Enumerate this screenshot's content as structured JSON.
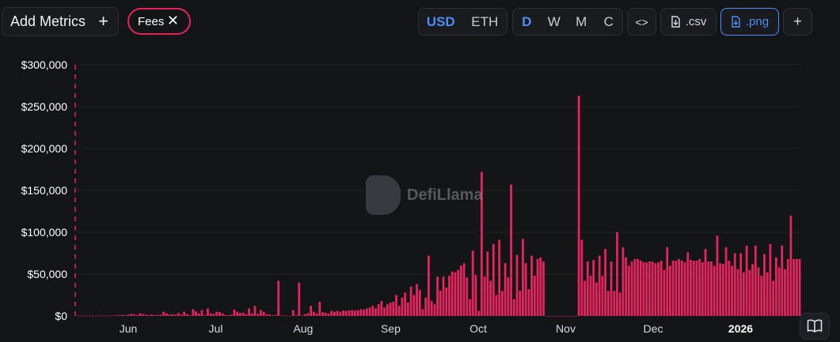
{
  "toolbar": {
    "add_metrics_label": "Add Metrics",
    "fees_chip_label": "Fees",
    "currency_options": [
      "USD",
      "ETH"
    ],
    "currency_selected": "USD",
    "period_options": [
      "D",
      "W",
      "M",
      "C"
    ],
    "period_selected": "D",
    "embed_label": "<>",
    "csv_label": ".csv",
    "png_label": ".png",
    "more_label": "+"
  },
  "watermark": "DefiLlama",
  "colors": {
    "bar": "#e4245f",
    "accent": "#4c8ef5",
    "background": "#141517"
  },
  "chart_data": {
    "type": "bar",
    "series": [
      {
        "name": "Fees"
      }
    ],
    "y_ticks": [
      "$0",
      "$50,000",
      "$100,000",
      "$150,000",
      "$200,000",
      "$250,000",
      "$300,000"
    ],
    "ylim": [
      0,
      300000
    ],
    "x_ticks": [
      "Jun",
      "Jul",
      "Aug",
      "Sep",
      "Oct",
      "Nov",
      "Dec",
      "2026"
    ],
    "values": [
      300,
      200,
      400,
      300,
      350,
      250,
      300,
      400,
      200,
      350,
      300,
      500,
      600,
      400,
      900,
      1200,
      800,
      1500,
      2500,
      1800,
      1200,
      3000,
      2200,
      1500,
      1000,
      1800,
      900,
      1200,
      1500,
      5000,
      3000,
      1800,
      2000,
      1500,
      3500,
      1600,
      5000,
      2200,
      900,
      8000,
      5500,
      2800,
      7000,
      800,
      9000,
      3200,
      2600,
      5000,
      4500,
      3200,
      1200,
      900,
      1500,
      7500,
      5000,
      3500,
      3800,
      2200,
      9000,
      3000,
      12000,
      2500,
      7000,
      5000,
      2000,
      1800,
      800,
      1200,
      42000,
      500,
      300,
      400,
      200,
      7000,
      800,
      40000,
      500,
      2000,
      3200,
      12000,
      5000,
      3000,
      17000,
      4500,
      3800,
      2800,
      6000,
      5000,
      6000,
      5000,
      6500,
      6000,
      6500,
      7000,
      6500,
      7000,
      8000,
      7500,
      9000,
      10000,
      12000,
      9000,
      14000,
      18000,
      10000,
      14000,
      16000,
      17000,
      25000,
      12000,
      22000,
      28000,
      16000,
      35000,
      25000,
      38000,
      31000,
      8000,
      22000,
      72000,
      18000,
      14000,
      47000,
      30000,
      47000,
      34000,
      48000,
      53000,
      52000,
      55000,
      60000,
      63000,
      46000,
      20000,
      78000,
      49000,
      6000,
      172000,
      47000,
      77000,
      42000,
      86000,
      25000,
      91000,
      30000,
      63000,
      46000,
      157000,
      20000,
      73000,
      30000,
      92000,
      63000,
      32000,
      72000,
      48000,
      68000,
      70000,
      65000,
      0,
      0,
      0,
      0,
      0,
      0,
      0,
      0,
      0,
      0,
      0,
      263000,
      91000,
      42000,
      65000,
      48000,
      67000,
      40000,
      72000,
      48000,
      80000,
      30000,
      65000,
      30000,
      100000,
      28000,
      82000,
      70000,
      60000,
      65000,
      68000,
      68000,
      66000,
      64000,
      64000,
      65000,
      65000,
      63000,
      64000,
      66000,
      55000,
      82000,
      60000,
      66000,
      66000,
      68000,
      66000,
      64000,
      76000,
      67000,
      66000,
      66000,
      68000,
      64000,
      80000,
      65000,
      65000,
      60000,
      96000,
      63000,
      62000,
      82000,
      66000,
      60000,
      75000,
      56000,
      75000,
      52000,
      84000,
      55000,
      62000,
      84000,
      58000,
      48000,
      74000,
      52000,
      86000,
      42000,
      70000,
      58000,
      84000,
      56000,
      68000,
      120000,
      68000,
      68000,
      68000
    ]
  }
}
